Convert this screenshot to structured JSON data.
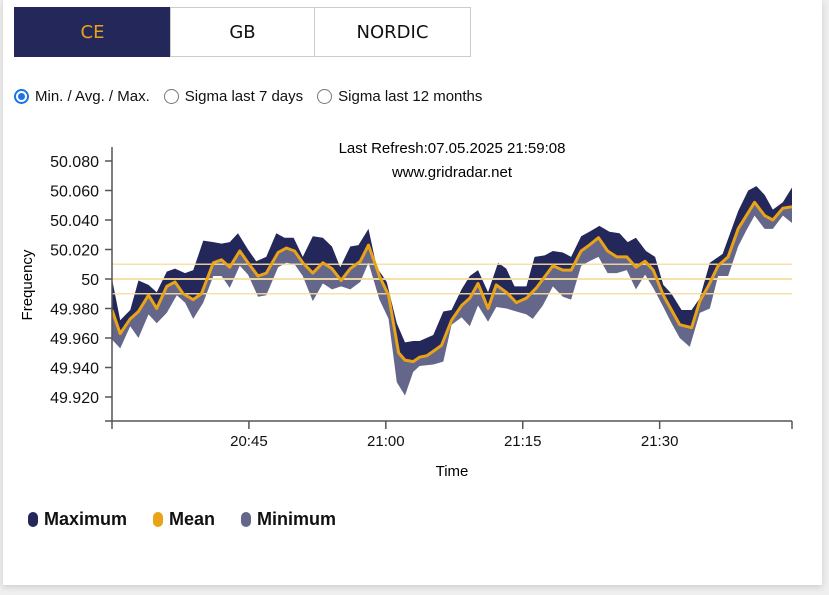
{
  "tabs": [
    {
      "label": "CE",
      "active": true
    },
    {
      "label": "GB",
      "active": false
    },
    {
      "label": "NORDIC",
      "active": false
    }
  ],
  "modes": [
    {
      "label": "Min. / Avg. / Max.",
      "selected": true
    },
    {
      "label": "Sigma last 7 days",
      "selected": false
    },
    {
      "label": "Sigma last 12 months",
      "selected": false
    }
  ],
  "colors": {
    "maximum": "#23275a",
    "mean": "#e8a317",
    "minimum": "#64678a",
    "reference": "#f5dfa0",
    "active_tab_bg": "#23275a",
    "active_tab_text": "#e8a317"
  },
  "chart_data": {
    "type": "area",
    "title": "Last Refresh:07.05.2025 21:59:08",
    "subtitle": "www.gridradar.net",
    "xlabel": "Time",
    "ylabel": "Frequency",
    "x_unit": "minutes since 20:30",
    "xlim": [
      0,
      74.5
    ],
    "ylim": [
      49.9,
      50.09
    ],
    "x_ticks": [
      {
        "value": 15,
        "label": "20:45"
      },
      {
        "value": 30,
        "label": "21:00"
      },
      {
        "value": 45,
        "label": "21:15"
      },
      {
        "value": 60,
        "label": "21:30"
      }
    ],
    "y_ticks": [
      {
        "value": 50.08,
        "label": "50.080"
      },
      {
        "value": 50.06,
        "label": "50.060"
      },
      {
        "value": 50.04,
        "label": "50.040"
      },
      {
        "value": 50.02,
        "label": "50.020"
      },
      {
        "value": 50.0,
        "label": "50"
      },
      {
        "value": 49.98,
        "label": "49.980"
      },
      {
        "value": 49.96,
        "label": "49.960"
      },
      {
        "value": 49.94,
        "label": "49.940"
      },
      {
        "value": 49.92,
        "label": "49.920"
      }
    ],
    "reference_lines": [
      50.01,
      50.0,
      49.99
    ],
    "legend": [
      {
        "name": "Maximum",
        "color": "#23275a"
      },
      {
        "name": "Mean",
        "color": "#e8a317"
      },
      {
        "name": "Minimum",
        "color": "#64678a"
      }
    ],
    "series": [
      {
        "name": "Maximum",
        "x": [
          0,
          0.9,
          2.0,
          2.9,
          4.0,
          4.9,
          6.0,
          6.9,
          8.0,
          8.9,
          10.0,
          11.1,
          12.0,
          12.9,
          13.8,
          14.9,
          15.8,
          16.9,
          18.0,
          18.9,
          19.9,
          20.9,
          22.0,
          23.1,
          24.1,
          25.0,
          26.1,
          27.0,
          28.1,
          29.0,
          30.1,
          31.2,
          32.1,
          33.0,
          33.7,
          35.2,
          36.3,
          37.2,
          38.3,
          39.2,
          40.1,
          41.2,
          42.3,
          43.2,
          44.1,
          45.4,
          46.3,
          47.4,
          48.3,
          49.4,
          50.3,
          51.4,
          52.3,
          53.4,
          54.5,
          55.6,
          56.5,
          57.4,
          58.5,
          59.5,
          60.4,
          61.3,
          62.4,
          63.5,
          64.4,
          65.5,
          66.9,
          68.6,
          69.7,
          70.6,
          71.5,
          72.4,
          73.5,
          74.5
        ],
        "values": [
          50.0,
          49.972,
          49.979,
          49.999,
          49.996,
          49.991,
          50.005,
          50.007,
          50.004,
          50.006,
          50.026,
          50.025,
          50.024,
          50.025,
          50.031,
          50.02,
          50.012,
          50.015,
          50.031,
          50.028,
          50.028,
          50.015,
          50.029,
          50.028,
          50.022,
          50.008,
          50.022,
          50.023,
          50.034,
          50.008,
          49.998,
          49.97,
          49.957,
          49.958,
          49.958,
          49.962,
          49.978,
          49.979,
          49.993,
          50.002,
          50.006,
          49.991,
          50.011,
          50.007,
          49.995,
          49.995,
          50.015,
          50.016,
          50.019,
          50.018,
          50.015,
          50.029,
          50.032,
          50.036,
          50.032,
          50.031,
          50.025,
          50.028,
          50.019,
          50.015,
          49.996,
          49.99,
          49.979,
          49.979,
          49.987,
          50.011,
          50.017,
          50.046,
          50.06,
          50.063,
          50.057,
          50.047,
          50.052,
          50.062
        ]
      },
      {
        "name": "Mean",
        "x": [
          0,
          0.9,
          2.0,
          2.9,
          4.0,
          4.9,
          6.0,
          6.9,
          7.8,
          8.9,
          9.8,
          11.1,
          12.0,
          12.9,
          14.0,
          14.9,
          16.0,
          16.9,
          18.2,
          19.1,
          20.0,
          20.9,
          22.0,
          23.1,
          24.1,
          25.1,
          26.1,
          27.2,
          28.1,
          29.3,
          30.3,
          31.4,
          32.1,
          33.0,
          33.7,
          34.5,
          35.2,
          36.1,
          37.2,
          38.3,
          39.2,
          40.1,
          41.2,
          42.1,
          43.2,
          44.3,
          45.4,
          46.5,
          48.3,
          49.4,
          50.3,
          51.4,
          52.3,
          53.3,
          54.3,
          55.3,
          56.4,
          57.4,
          58.4,
          59.3,
          60.4,
          61.3,
          62.2,
          63.5,
          64.4,
          65.4,
          66.4,
          67.5,
          68.6,
          69.5,
          70.4,
          71.5,
          72.4,
          73.5,
          74.5
        ],
        "values": [
          49.979,
          49.963,
          49.973,
          49.978,
          49.989,
          49.98,
          49.995,
          49.998,
          49.99,
          49.986,
          49.99,
          50.011,
          50.013,
          50.008,
          50.019,
          50.011,
          50.002,
          50.004,
          50.018,
          50.021,
          50.019,
          50.011,
          50.004,
          50.011,
          50.007,
          49.999,
          50.007,
          50.012,
          50.023,
          50.002,
          49.989,
          49.95,
          49.945,
          49.944,
          49.947,
          49.948,
          49.951,
          49.955,
          49.972,
          49.982,
          49.987,
          49.997,
          49.98,
          49.996,
          49.991,
          49.984,
          49.987,
          49.994,
          50.009,
          50.006,
          50.006,
          50.019,
          50.023,
          50.028,
          50.019,
          50.015,
          50.015,
          50.008,
          50.012,
          50.006,
          49.989,
          49.979,
          49.969,
          49.967,
          49.985,
          49.996,
          50.009,
          50.015,
          50.034,
          50.043,
          50.052,
          50.043,
          50.04,
          50.048,
          50.049
        ]
      },
      {
        "name": "Minimum",
        "x": [
          0,
          0.9,
          2.0,
          2.9,
          4.0,
          4.9,
          6.0,
          7.1,
          8.0,
          8.9,
          10.0,
          11.1,
          12.0,
          12.9,
          14.0,
          14.9,
          16.0,
          16.9,
          18.2,
          19.1,
          20.0,
          20.9,
          22.0,
          23.1,
          24.1,
          25.1,
          26.1,
          27.2,
          28.1,
          29.3,
          30.3,
          31.2,
          32.1,
          33.0,
          33.7,
          35.2,
          36.3,
          37.2,
          38.3,
          39.2,
          40.1,
          41.2,
          42.1,
          43.2,
          44.3,
          45.4,
          46.1,
          47.2,
          48.3,
          49.4,
          50.3,
          51.4,
          52.3,
          53.3,
          54.3,
          55.3,
          56.4,
          57.4,
          58.4,
          59.3,
          60.4,
          61.3,
          62.2,
          63.3,
          64.4,
          65.5,
          66.4,
          67.5,
          68.6,
          69.5,
          70.4,
          71.5,
          72.4,
          73.5,
          74.5
        ],
        "values": [
          49.959,
          49.953,
          49.968,
          49.96,
          49.976,
          49.97,
          49.977,
          49.989,
          49.984,
          49.973,
          49.984,
          50.002,
          50.002,
          49.994,
          50.009,
          50.003,
          49.988,
          49.989,
          50.008,
          50.011,
          50.01,
          50.002,
          49.985,
          49.997,
          49.993,
          49.995,
          49.993,
          49.998,
          50.011,
          49.986,
          49.973,
          49.93,
          49.921,
          49.937,
          49.941,
          49.942,
          49.944,
          49.969,
          49.974,
          49.968,
          49.982,
          49.971,
          49.981,
          49.98,
          49.978,
          49.976,
          49.973,
          49.982,
          49.995,
          49.988,
          49.986,
          50.009,
          50.012,
          50.015,
          50.004,
          50.004,
          50.006,
          49.993,
          50.003,
          49.994,
          49.981,
          49.97,
          49.96,
          49.954,
          49.977,
          49.98,
          50.002,
          50.002,
          50.022,
          50.033,
          50.043,
          50.034,
          50.034,
          50.043,
          50.038
        ]
      }
    ]
  }
}
